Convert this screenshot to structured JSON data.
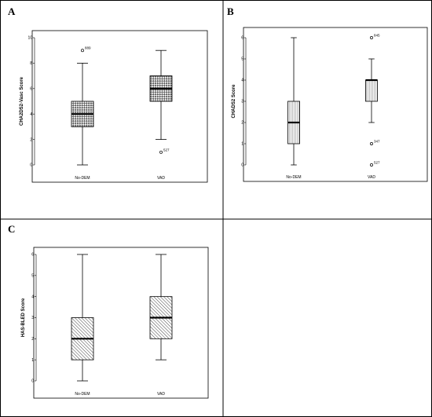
{
  "figure": {
    "panel_letters": [
      "A",
      "B",
      "C"
    ]
  },
  "chart_data": [
    {
      "type": "box",
      "panel": "A",
      "ylabel": "CHA2DS2-Vasc Score",
      "ylim": [
        0,
        10
      ],
      "yticks": [
        0,
        2,
        4,
        6,
        8,
        10
      ],
      "categories": [
        "No-DEM",
        "VAD"
      ],
      "boxes": [
        {
          "whisker_low": 0,
          "q1": 3,
          "median": 4,
          "q3": 5,
          "whisker_high": 8,
          "pattern": "checker"
        },
        {
          "whisker_low": 2,
          "q1": 5,
          "median": 6,
          "q3": 7,
          "whisker_high": 9,
          "pattern": "checker"
        }
      ],
      "outliers": [
        {
          "category": "No-DEM",
          "value": 9,
          "label": "889"
        },
        {
          "category": "VAD",
          "value": 1,
          "label": "527"
        }
      ]
    },
    {
      "type": "box",
      "panel": "B",
      "ylabel": "CHADS2 Score",
      "ylim": [
        0,
        6
      ],
      "yticks": [
        0,
        1,
        2,
        3,
        4,
        5,
        6
      ],
      "categories": [
        "No-DEM",
        "VAD"
      ],
      "boxes": [
        {
          "whisker_low": 0,
          "q1": 1,
          "median": 2,
          "q3": 3,
          "whisker_high": 6,
          "pattern": "vlines"
        },
        {
          "whisker_low": 2,
          "q1": 3,
          "median": 4,
          "q3": 4,
          "whisker_high": 5,
          "pattern": "vlines"
        }
      ],
      "outliers": [
        {
          "category": "VAD",
          "value": 6,
          "label": "845"
        },
        {
          "category": "VAD",
          "value": 1,
          "label": "347"
        },
        {
          "category": "VAD",
          "value": 0,
          "label": "527"
        }
      ]
    },
    {
      "type": "box",
      "panel": "C",
      "ylabel": "HAS-BLED Score",
      "ylim": [
        0,
        6
      ],
      "yticks": [
        0,
        1,
        2,
        3,
        4,
        5,
        6
      ],
      "categories": [
        "No-DEM",
        "VAD"
      ],
      "boxes": [
        {
          "whisker_low": 0,
          "q1": 1,
          "median": 2,
          "q3": 3,
          "whisker_high": 6,
          "pattern": "diag"
        },
        {
          "whisker_low": 1,
          "q1": 2,
          "median": 3,
          "q3": 4,
          "whisker_high": 6,
          "pattern": "diag"
        }
      ],
      "outliers": []
    }
  ]
}
